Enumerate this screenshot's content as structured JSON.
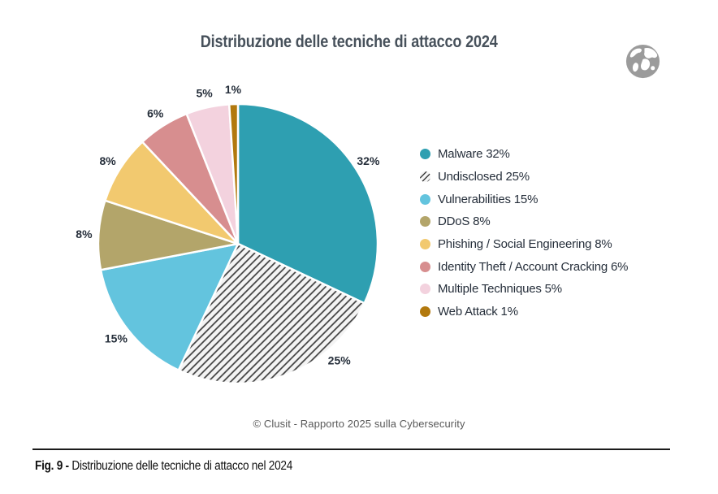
{
  "header": {
    "title": "Distribuzione delle tecniche di attacco 2024"
  },
  "icons": {
    "globe": "world-globe-icon"
  },
  "chart_data": {
    "type": "pie",
    "title": "Distribuzione delle tecniche di attacco 2024",
    "start_angle_deg": 0,
    "direction": "clockwise",
    "legend_position": "right",
    "label_format": "{value}%",
    "slices": [
      {
        "label": "Malware",
        "value": 32,
        "color": "#2E9FB1"
      },
      {
        "label": "Undisclosed",
        "value": 25,
        "color": "#F4F4F4",
        "pattern": "diagonal-stripes",
        "label_angle": 139
      },
      {
        "label": "Vulnerabilities",
        "value": 15,
        "color": "#63C4DE"
      },
      {
        "label": "DDoS",
        "value": 8,
        "color": "#B3A56A"
      },
      {
        "label": "Phishing / Social Engineering",
        "value": 8,
        "color": "#F2C96F"
      },
      {
        "label": "Identity Theft / Account Cracking",
        "value": 6,
        "color": "#D78E8F"
      },
      {
        "label": "Multiple Techniques",
        "value": 5,
        "color": "#F3D2DE"
      },
      {
        "label": "Web Attack",
        "value": 1,
        "color": "#B2790E"
      }
    ]
  },
  "footer": {
    "source": "© Clusit - Rapporto 2025 sulla Cybersecurity",
    "fig_label": "Fig. 9 -",
    "fig_caption": "Distribuzione delle tecniche di attacco nel 2024"
  }
}
